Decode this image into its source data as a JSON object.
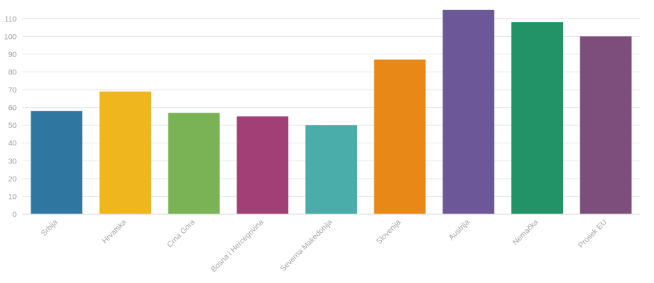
{
  "chart_data": {
    "type": "bar",
    "title": "",
    "xlabel": "",
    "ylabel": "",
    "categories": [
      "Srbija",
      "Hrvatska",
      "Crna Gora",
      "Bosna i Hercegovina",
      "Severna Makedonija",
      "Slovenija",
      "Austrija",
      "Nemačka",
      "Prosek EU"
    ],
    "values": [
      58,
      69,
      57,
      55,
      50,
      87,
      115,
      108,
      100
    ],
    "colors": [
      "#2f77a1",
      "#f0b61e",
      "#7ab356",
      "#a23f77",
      "#4aada9",
      "#e88917",
      "#6c5899",
      "#219367",
      "#7d4e7c"
    ],
    "ylim": [
      0,
      115
    ],
    "yticks": [
      0,
      10,
      20,
      30,
      40,
      50,
      60,
      70,
      80,
      90,
      100,
      110
    ],
    "grid": true,
    "legend": "none"
  }
}
